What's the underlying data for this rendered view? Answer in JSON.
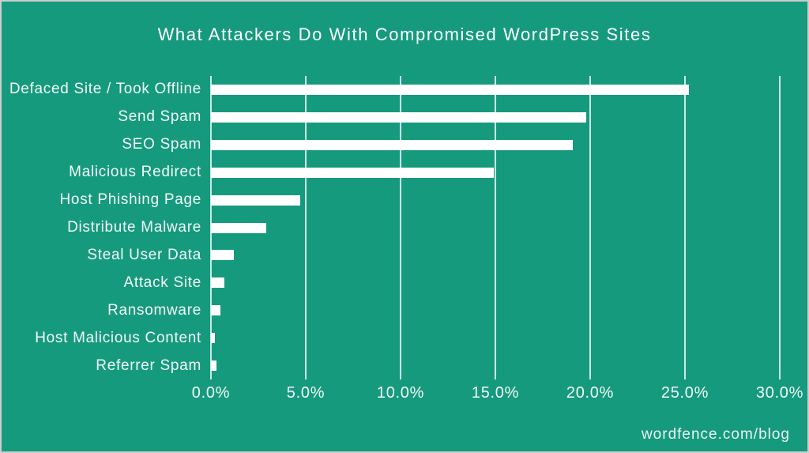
{
  "chart_data": {
    "type": "bar",
    "orientation": "horizontal",
    "title": "What Attackers Do With Compromised WordPress Sites",
    "categories": [
      "Defaced Site / Took Offline",
      "Send Spam",
      "SEO Spam",
      "Malicious Redirect",
      "Host Phishing Page",
      "Distribute Malware",
      "Steal User Data",
      "Attack Site",
      "Ransomware",
      "Host Malicious Content",
      "Referrer Spam"
    ],
    "values": [
      25.2,
      19.8,
      19.1,
      14.9,
      4.7,
      2.9,
      1.2,
      0.7,
      0.5,
      0.2,
      0.3
    ],
    "unit": "%",
    "xlabel": "",
    "ylabel": "",
    "xlim": [
      0,
      30
    ],
    "xticks": [
      0,
      5,
      10,
      15,
      20,
      25,
      30
    ],
    "xtick_labels": [
      "0.0%",
      "5.0%",
      "10.0%",
      "15.0%",
      "20.0%",
      "25.0%",
      "30.0%"
    ],
    "grid": true,
    "legend": false,
    "colors": {
      "background": "#169a7e",
      "bar": "#ffffff",
      "gridline": "#e3efeb",
      "text": "#ffffff"
    }
  },
  "footer": {
    "text": "wordfence.com/blog"
  }
}
